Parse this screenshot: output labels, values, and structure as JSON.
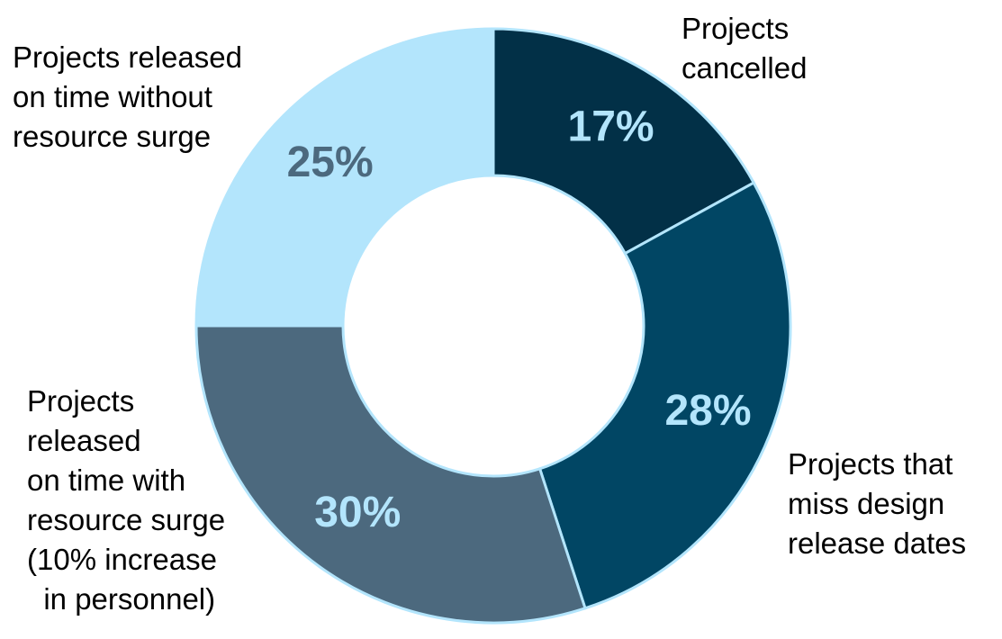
{
  "chart_data": {
    "type": "pie",
    "subtype": "donut",
    "slices": [
      {
        "label_lines": [
          "Projects",
          "cancelled"
        ],
        "value": 17,
        "value_label": "17%",
        "color": "#023047",
        "text_color": "#B3E5FC"
      },
      {
        "label_lines": [
          "Projects that",
          "miss design",
          "release dates"
        ],
        "value": 28,
        "value_label": "28%",
        "color": "#014664",
        "text_color": "#B3E5FC"
      },
      {
        "label_lines": [
          "Projects",
          "released",
          "on time with",
          "resource surge",
          "(10% increase",
          "  in personnel)"
        ],
        "value": 30,
        "value_label": "30%",
        "color": "#4C697E",
        "text_color": "#B3E5FC"
      },
      {
        "label_lines": [
          "Projects released",
          "on time without",
          "resource surge"
        ],
        "value": 25,
        "value_label": "25%",
        "color": "#B3E5FC",
        "text_color": "#4C697E"
      }
    ],
    "start_angle": "12 o'clock",
    "direction": "clockwise",
    "border_color": "#B3E5FC",
    "legend": "none"
  }
}
